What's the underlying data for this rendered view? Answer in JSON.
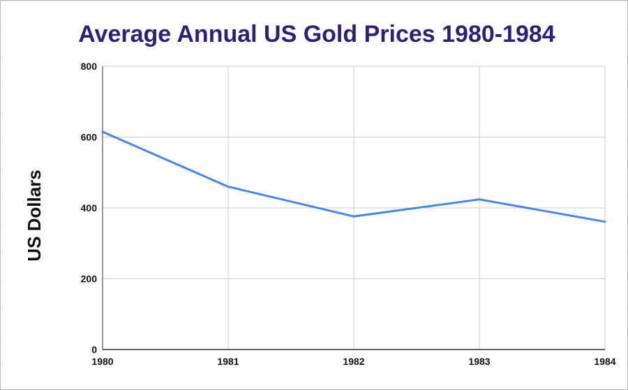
{
  "chart_data": {
    "type": "line",
    "title": "Average Annual US Gold Prices 1980-1984",
    "xlabel": "",
    "ylabel": "US Dollars",
    "x": [
      "1980",
      "1981",
      "1982",
      "1983",
      "1984"
    ],
    "series": [
      {
        "values": [
          615,
          460,
          376,
          424,
          361
        ],
        "color": "#4a86e8"
      }
    ],
    "ylim": [
      0,
      800
    ],
    "yticks": [
      "0",
      "200",
      "400",
      "600",
      "800"
    ],
    "grid": true,
    "legend": "none"
  }
}
